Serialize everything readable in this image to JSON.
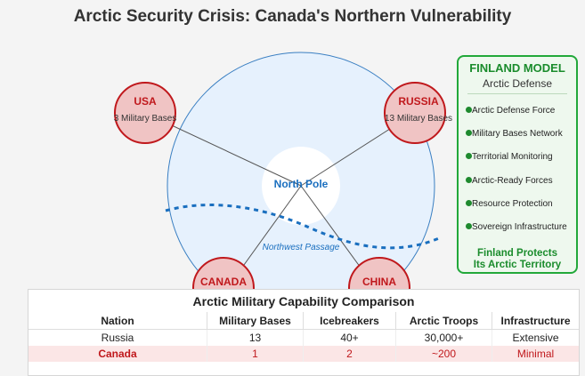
{
  "title": "Arctic Security Crisis: Canada's Northern Vulnerability",
  "map": {
    "center_label": "North Pole",
    "passage_label": "Northwest Passage",
    "nations": [
      {
        "name": "USA",
        "bases": "3 Military Bases"
      },
      {
        "name": "RUSSIA",
        "bases": "13 Military Bases"
      },
      {
        "name": "CANADA"
      },
      {
        "name": "CHINA"
      }
    ]
  },
  "panel": {
    "title": "FINLAND MODEL",
    "subtitle": "Arctic Defense",
    "items": [
      "Arctic Defense Force",
      "Military Bases Network",
      "Territorial Monitoring",
      "Arctic-Ready Forces",
      "Resource Protection",
      "Sovereign Infrastructure"
    ],
    "footer_line1": "Finland Protects",
    "footer_line2": "Its Arctic Territory"
  },
  "table": {
    "title": "Arctic Military Capability Comparison",
    "headers": [
      "Nation",
      "Military Bases",
      "Icebreakers",
      "Arctic Troops",
      "Infrastructure"
    ],
    "rows": [
      [
        "Russia",
        "13",
        "40+",
        "30,000+",
        "Extensive"
      ],
      [
        "Canada",
        "1",
        "2",
        "~200",
        "Minimal"
      ]
    ]
  },
  "colors": {
    "danger": "#c0181c",
    "accent_green": "#1a8c2c",
    "arctic_fill": "#e6f1fd",
    "arctic_stroke": "#3a7fc2"
  }
}
